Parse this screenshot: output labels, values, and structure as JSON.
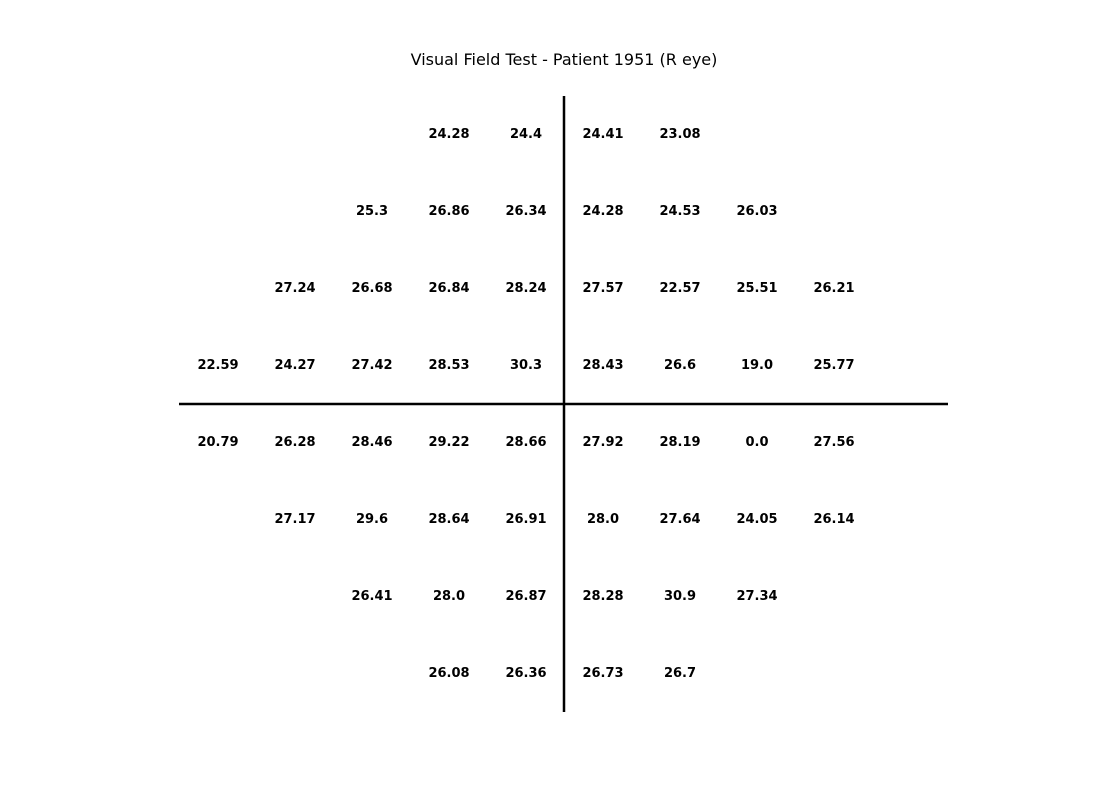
{
  "chart_data": {
    "type": "table",
    "title": "Visual Field Test - Patient 1951 (R eye)",
    "grid": false,
    "axes_lines": "crosshair at center",
    "rows": [
      {
        "y": 4,
        "cells": [
          {
            "x": -2,
            "value": "24.28"
          },
          {
            "x": -1,
            "value": "24.4"
          },
          {
            "x": 1,
            "value": "24.41"
          },
          {
            "x": 2,
            "value": "23.08"
          }
        ]
      },
      {
        "y": 3,
        "cells": [
          {
            "x": -3,
            "value": "25.3"
          },
          {
            "x": -2,
            "value": "26.86"
          },
          {
            "x": -1,
            "value": "26.34"
          },
          {
            "x": 1,
            "value": "24.28"
          },
          {
            "x": 2,
            "value": "24.53"
          },
          {
            "x": 3,
            "value": "26.03"
          }
        ]
      },
      {
        "y": 2,
        "cells": [
          {
            "x": -4,
            "value": "27.24"
          },
          {
            "x": -3,
            "value": "26.68"
          },
          {
            "x": -2,
            "value": "26.84"
          },
          {
            "x": -1,
            "value": "28.24"
          },
          {
            "x": 1,
            "value": "27.57"
          },
          {
            "x": 2,
            "value": "22.57"
          },
          {
            "x": 3,
            "value": "25.51"
          },
          {
            "x": 4,
            "value": "26.21"
          }
        ]
      },
      {
        "y": 1,
        "cells": [
          {
            "x": -5,
            "value": "22.59"
          },
          {
            "x": -4,
            "value": "24.27"
          },
          {
            "x": -3,
            "value": "27.42"
          },
          {
            "x": -2,
            "value": "28.53"
          },
          {
            "x": -1,
            "value": "30.3"
          },
          {
            "x": 1,
            "value": "28.43"
          },
          {
            "x": 2,
            "value": "26.6"
          },
          {
            "x": 3,
            "value": "19.0"
          },
          {
            "x": 4,
            "value": "25.77"
          }
        ]
      },
      {
        "y": -1,
        "cells": [
          {
            "x": -5,
            "value": "20.79"
          },
          {
            "x": -4,
            "value": "26.28"
          },
          {
            "x": -3,
            "value": "28.46"
          },
          {
            "x": -2,
            "value": "29.22"
          },
          {
            "x": -1,
            "value": "28.66"
          },
          {
            "x": 1,
            "value": "27.92"
          },
          {
            "x": 2,
            "value": "28.19"
          },
          {
            "x": 3,
            "value": "0.0"
          },
          {
            "x": 4,
            "value": "27.56"
          }
        ]
      },
      {
        "y": -2,
        "cells": [
          {
            "x": -4,
            "value": "27.17"
          },
          {
            "x": -3,
            "value": "29.6"
          },
          {
            "x": -2,
            "value": "28.64"
          },
          {
            "x": -1,
            "value": "26.91"
          },
          {
            "x": 1,
            "value": "28.0"
          },
          {
            "x": 2,
            "value": "27.64"
          },
          {
            "x": 3,
            "value": "24.05"
          },
          {
            "x": 4,
            "value": "26.14"
          }
        ]
      },
      {
        "y": -3,
        "cells": [
          {
            "x": -3,
            "value": "26.41"
          },
          {
            "x": -2,
            "value": "28.0"
          },
          {
            "x": -1,
            "value": "26.87"
          },
          {
            "x": 1,
            "value": "28.28"
          },
          {
            "x": 2,
            "value": "30.9"
          },
          {
            "x": 3,
            "value": "27.34"
          }
        ]
      },
      {
        "y": -4,
        "cells": [
          {
            "x": -2,
            "value": "26.08"
          },
          {
            "x": -1,
            "value": "26.36"
          },
          {
            "x": 1,
            "value": "26.73"
          },
          {
            "x": 2,
            "value": "26.7"
          }
        ]
      }
    ]
  }
}
